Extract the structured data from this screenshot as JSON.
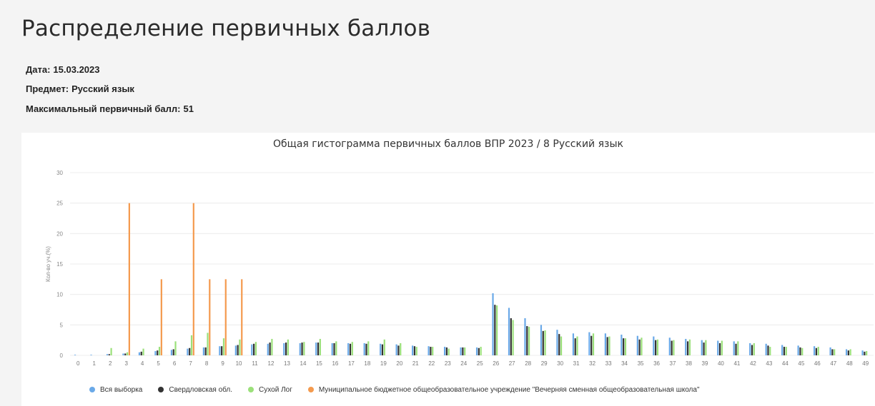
{
  "page": {
    "title": "Распределение первичных баллов",
    "date_label": "Дата:",
    "date_value": "15.03.2023",
    "subject_label": "Предмет:",
    "subject_value": "Русский язык",
    "max_label": "Максимальный первичный балл:",
    "max_value": "51"
  },
  "colors": {
    "all": "#6aa9e8",
    "region": "#333333",
    "district": "#9be07a",
    "school": "#f49a4e",
    "grid": "#ececec"
  },
  "chart_data": {
    "type": "bar",
    "title": "Общая гистограмма первичных баллов ВПР 2023 / 8 Русский язык",
    "xlabel": "",
    "ylabel": "Кол-во уч.(%)",
    "ylim": [
      0,
      30
    ],
    "yticks": [
      0,
      5,
      10,
      15,
      20,
      25,
      30
    ],
    "grid": true,
    "legend_position": "bottom",
    "categories": [
      "0",
      "1",
      "2",
      "3",
      "4",
      "5",
      "6",
      "7",
      "8",
      "9",
      "10",
      "11",
      "12",
      "13",
      "14",
      "15",
      "16",
      "17",
      "18",
      "19",
      "20",
      "21",
      "22",
      "23",
      "24",
      "25",
      "26",
      "27",
      "28",
      "29",
      "30",
      "31",
      "32",
      "33",
      "34",
      "35",
      "36",
      "37",
      "38",
      "39",
      "40",
      "41",
      "42",
      "43",
      "44",
      "45",
      "46",
      "47",
      "48",
      "49"
    ],
    "series": [
      {
        "name": "Вся выборка",
        "values": [
          0.1,
          0.1,
          0.2,
          0.3,
          0.5,
          0.7,
          0.9,
          1.1,
          1.3,
          1.5,
          1.6,
          1.8,
          1.9,
          2.0,
          2.0,
          2.1,
          2.0,
          2.0,
          2.0,
          1.9,
          1.8,
          1.6,
          1.5,
          1.4,
          1.3,
          1.3,
          10.2,
          7.8,
          6.1,
          5.0,
          4.2,
          3.6,
          3.8,
          3.6,
          3.4,
          3.2,
          3.1,
          2.9,
          2.7,
          2.5,
          2.4,
          2.3,
          2.0,
          1.9,
          1.7,
          1.6,
          1.5,
          1.3,
          1.0,
          0.8
        ]
      },
      {
        "name": "Свердловская обл.",
        "values": [
          0,
          0,
          0.2,
          0.3,
          0.6,
          0.8,
          1.0,
          1.2,
          1.3,
          1.5,
          1.7,
          1.9,
          2.1,
          2.1,
          2.1,
          2.1,
          2.0,
          1.9,
          1.9,
          1.8,
          1.6,
          1.5,
          1.4,
          1.3,
          1.3,
          1.2,
          8.3,
          6.1,
          4.8,
          4.0,
          3.5,
          2.8,
          3.2,
          3.0,
          2.8,
          2.6,
          2.5,
          2.4,
          2.3,
          2.1,
          2.0,
          1.9,
          1.7,
          1.6,
          1.4,
          1.3,
          1.2,
          1.0,
          0.8,
          0.6
        ]
      },
      {
        "name": "Сухой Лог",
        "values": [
          0,
          0,
          1.2,
          0.5,
          1.1,
          1.4,
          2.3,
          3.3,
          3.7,
          2.8,
          2.6,
          2.2,
          2.7,
          2.6,
          2.2,
          2.7,
          2.3,
          2.2,
          2.3,
          2.6,
          2.0,
          1.4,
          1.4,
          1.1,
          1.3,
          1.4,
          8.2,
          5.8,
          4.7,
          4.1,
          3.1,
          3.1,
          3.6,
          3.1,
          2.8,
          2.9,
          2.6,
          2.5,
          2.6,
          2.5,
          2.4,
          2.3,
          2.0,
          1.4,
          1.4,
          1.2,
          1.4,
          1.0,
          1.0,
          0.7
        ]
      },
      {
        "name": "Муниципальное бюджетное общеобразовательное учреждение \"Вечерняя сменная общеобразовательная школа\"",
        "values": [
          0,
          0,
          0,
          25.0,
          0,
          12.5,
          0,
          25.0,
          12.5,
          12.5,
          12.5,
          0,
          0,
          0,
          0,
          0,
          0,
          0,
          0,
          0,
          0,
          0,
          0,
          0,
          0,
          0,
          0,
          0,
          0,
          0,
          0,
          0,
          0,
          0,
          0,
          0,
          0,
          0,
          0,
          0,
          0,
          0,
          0,
          0,
          0,
          0,
          0,
          0,
          0,
          0
        ]
      }
    ]
  }
}
